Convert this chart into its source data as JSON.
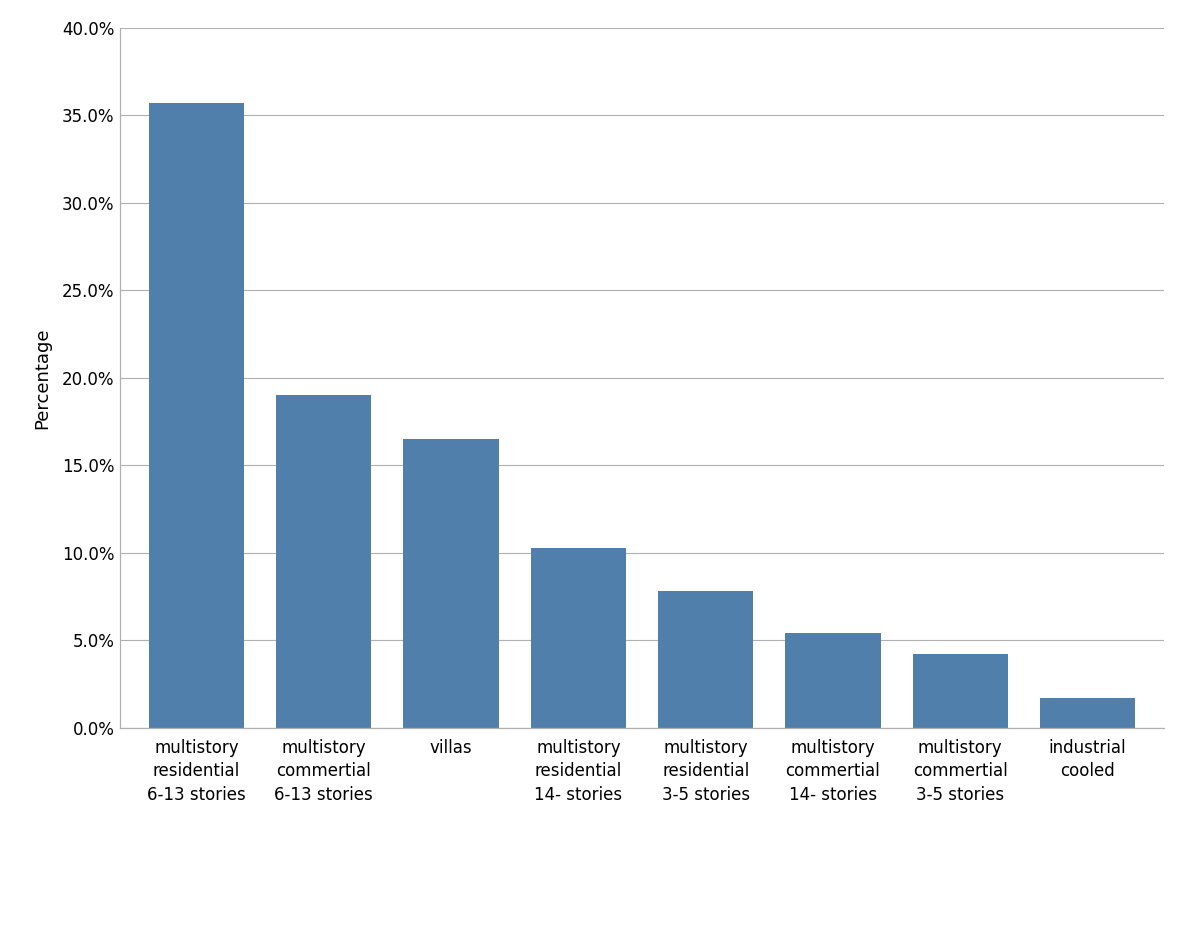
{
  "categories": [
    "multistory\nresidential\n6-13 stories",
    "multistory\ncommertial\n6-13 stories",
    "villas",
    "multistory\nresidential\n14- stories",
    "multistory\nresidential\n3-5 stories",
    "multistory\ncommertial\n14- stories",
    "multistory\ncommertial\n3-5 stories",
    "industrial\ncooled"
  ],
  "values": [
    0.357,
    0.19,
    0.165,
    0.103,
    0.078,
    0.054,
    0.042,
    0.017
  ],
  "bar_color": "#4f7faa",
  "ylabel": "Percentage",
  "ylim": [
    0,
    0.4
  ],
  "yticks": [
    0.0,
    0.05,
    0.1,
    0.15,
    0.2,
    0.25,
    0.3,
    0.35,
    0.4
  ],
  "ytick_labels": [
    "0.0%",
    "5.0%",
    "10.0%",
    "15.0%",
    "20.0%",
    "25.0%",
    "30.0%",
    "35.0%",
    "40.0%"
  ],
  "background_color": "#ffffff",
  "grid_color": "#b0b0b0",
  "tick_label_fontsize": 12,
  "ylabel_fontsize": 13,
  "bar_width": 0.75
}
